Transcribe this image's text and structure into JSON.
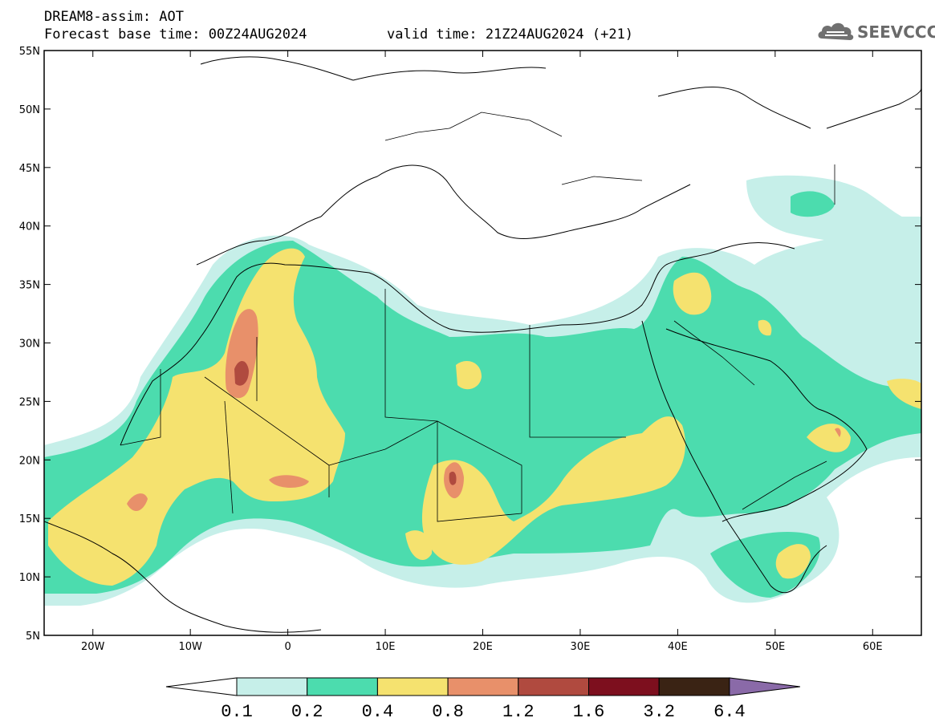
{
  "header": {
    "title": "DREAM8-assim: AOT",
    "base_time": "Forecast base time: 00Z24AUG2024",
    "valid_time": "valid time: 21Z24AUG2024 (+21)",
    "logo_text": "SEEVCCC"
  },
  "map": {
    "lon_range": [
      -25,
      65
    ],
    "lat_range": [
      5,
      55
    ],
    "lat_ticks": [
      "55N",
      "50N",
      "45N",
      "40N",
      "35N",
      "30N",
      "25N",
      "20N",
      "15N",
      "10N",
      "5N"
    ],
    "lon_ticks": [
      "20W",
      "10W",
      "0",
      "10E",
      "20E",
      "30E",
      "40E",
      "50E",
      "60E"
    ]
  },
  "colorbar": {
    "labels": [
      "0.1",
      "0.2",
      "0.4",
      "0.8",
      "1.2",
      "1.6",
      "3.2",
      "6.4"
    ],
    "colors": [
      "#ffffff",
      "#c6efe9",
      "#4cdcae",
      "#f5e26f",
      "#e8906a",
      "#b04a3f",
      "#7d0f1e",
      "#3a2314",
      "#8a6aa8"
    ]
  }
}
